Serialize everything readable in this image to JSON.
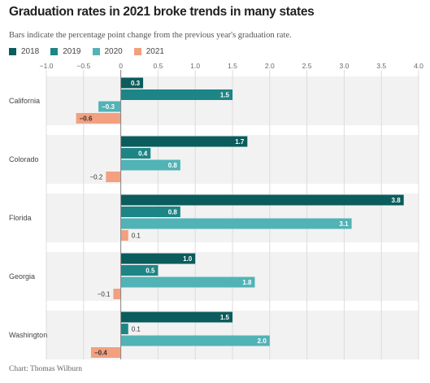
{
  "chart_data": {
    "type": "bar",
    "orientation": "horizontal",
    "title": "Graduation rates in 2021 broke trends in many states",
    "subtitle": "Bars indicate the percentage point change from the previous year's graduation rate.",
    "categories": [
      "California",
      "Colorado",
      "Florida",
      "Georgia",
      "Washington"
    ],
    "series": [
      {
        "name": "2018",
        "color": "#0b5c5c",
        "values": [
          0.3,
          1.7,
          3.8,
          1.0,
          1.5
        ]
      },
      {
        "name": "2019",
        "color": "#1d8585",
        "values": [
          1.5,
          0.4,
          0.8,
          0.5,
          0.1
        ]
      },
      {
        "name": "2020",
        "color": "#52b3b6",
        "values": [
          -0.3,
          0.8,
          3.1,
          1.8,
          2.0
        ]
      },
      {
        "name": "2021",
        "color": "#f2a07f",
        "values": [
          -0.6,
          -0.2,
          0.1,
          -0.1,
          -0.4
        ]
      }
    ],
    "value_labels": [
      [
        "0.3",
        "1.5",
        "−0.3",
        "−0.6"
      ],
      [
        "1.7",
        "0.4",
        "0.8",
        "−0.2"
      ],
      [
        "3.8",
        "0.8",
        "3.1",
        "0.1"
      ],
      [
        "1.0",
        "0.5",
        "1.8",
        "−0.1"
      ],
      [
        "1.5",
        "0.1",
        "2.0",
        "−0.4"
      ]
    ],
    "xlim": [
      -1.0,
      4.0
    ],
    "xticks": [
      -1.0,
      -0.5,
      0,
      0.5,
      1.0,
      1.5,
      2.0,
      2.5,
      3.0,
      3.5,
      4.0
    ],
    "xtick_labels": [
      "−1.0",
      "−0.5",
      "0",
      "0.5",
      "1.0",
      "1.5",
      "2.0",
      "2.5",
      "3.0",
      "3.5",
      "4.0"
    ],
    "legend_position": "top-left",
    "grid": true,
    "source": "Chart: Thomas Wilburn"
  }
}
